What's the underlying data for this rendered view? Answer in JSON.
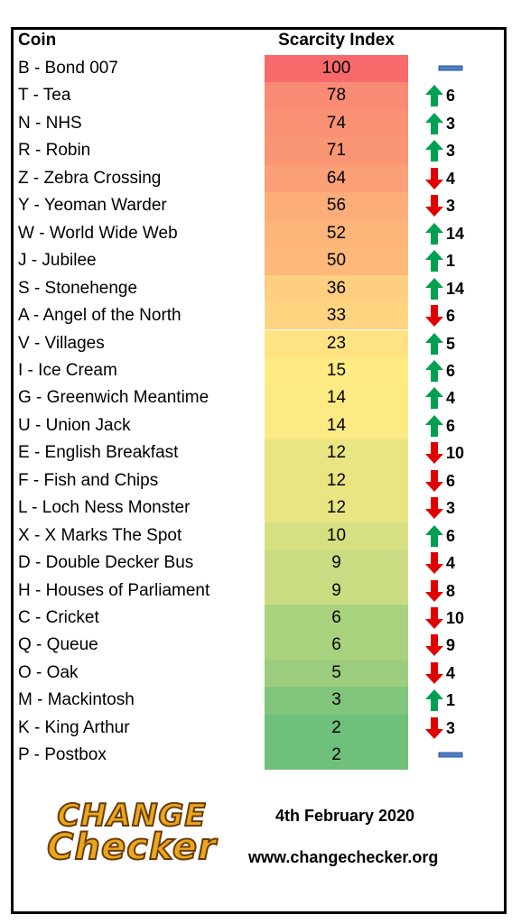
{
  "header": {
    "coin": "Coin",
    "index": "Scarcity Index"
  },
  "rows": [
    {
      "coin": "B - Bond 007",
      "index": 100,
      "color": "#f8696b",
      "trend": "same"
    },
    {
      "coin": "T - Tea",
      "index": 78,
      "color": "#f98b74",
      "trend": "up",
      "change": 6
    },
    {
      "coin": "N - NHS",
      "index": 74,
      "color": "#f99174",
      "trend": "up",
      "change": 3
    },
    {
      "coin": "R - Robin",
      "index": 71,
      "color": "#fa9674",
      "trend": "up",
      "change": 3
    },
    {
      "coin": "Z - Zebra Crossing",
      "index": 64,
      "color": "#fba076",
      "trend": "down",
      "change": 4
    },
    {
      "coin": "Y - Yeoman Warder",
      "index": 56,
      "color": "#fcad78",
      "trend": "down",
      "change": 3
    },
    {
      "coin": "W - World Wide Web",
      "index": 52,
      "color": "#fcb479",
      "trend": "up",
      "change": 14
    },
    {
      "coin": "J - Jubilee",
      "index": 50,
      "color": "#fdb87a",
      "trend": "up",
      "change": 1
    },
    {
      "coin": "S - Stonehenge",
      "index": 36,
      "color": "#fecf7f",
      "trend": "up",
      "change": 14
    },
    {
      "coin": "A - Angel of the North",
      "index": 33,
      "color": "#fed480",
      "trend": "down",
      "change": 6
    },
    {
      "coin": "V - Villages",
      "index": 23,
      "color": "#ffe383",
      "trend": "up",
      "change": 5
    },
    {
      "coin": "I - Ice Cream",
      "index": 15,
      "color": "#ffeb84",
      "trend": "up",
      "change": 6
    },
    {
      "coin": "G - Greenwich Meantime",
      "index": 14,
      "color": "#fcea84",
      "trend": "up",
      "change": 4
    },
    {
      "coin": "U - Union Jack",
      "index": 14,
      "color": "#fcea84",
      "trend": "up",
      "change": 6
    },
    {
      "coin": "E - English Breakfast",
      "index": 12,
      "color": "#e9e583",
      "trend": "down",
      "change": 10
    },
    {
      "coin": "F - Fish and Chips",
      "index": 12,
      "color": "#e9e583",
      "trend": "down",
      "change": 6
    },
    {
      "coin": "L - Loch Ness Monster",
      "index": 12,
      "color": "#e9e583",
      "trend": "down",
      "change": 3
    },
    {
      "coin": "X - X Marks The Spot",
      "index": 10,
      "color": "#d6e082",
      "trend": "up",
      "change": 6
    },
    {
      "coin": "D - Double Decker Bus",
      "index": 9,
      "color": "#c9dc81",
      "trend": "down",
      "change": 4
    },
    {
      "coin": "H - Houses of Parliament",
      "index": 9,
      "color": "#c9dc81",
      "trend": "down",
      "change": 8
    },
    {
      "coin": "C - Cricket",
      "index": 6,
      "color": "#a9d27f",
      "trend": "down",
      "change": 10
    },
    {
      "coin": "Q - Queue",
      "index": 6,
      "color": "#a9d27f",
      "trend": "down",
      "change": 9
    },
    {
      "coin": "O - Oak",
      "index": 5,
      "color": "#9ccd7e",
      "trend": "down",
      "change": 4
    },
    {
      "coin": "M - Mackintosh",
      "index": 3,
      "color": "#80c57c",
      "trend": "up",
      "change": 1
    },
    {
      "coin": "K - King Arthur",
      "index": 2,
      "color": "#6fc07b",
      "trend": "down",
      "change": 3
    },
    {
      "coin": "P - Postbox",
      "index": 2,
      "color": "#6fc07b",
      "trend": "same"
    }
  ],
  "footer": {
    "logo_top": "CHANGE",
    "logo_bottom": "Checker",
    "date": "4th February 2020",
    "url": "www.changechecker.org"
  }
}
